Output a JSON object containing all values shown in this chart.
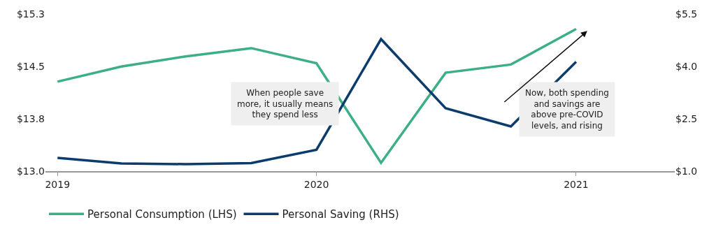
{
  "chart_data": {
    "type": "line",
    "x": [
      "2019-01-01",
      "2019-04-01",
      "2019-07-01",
      "2019-10-01",
      "2020-01-01",
      "2020-04-01",
      "2020-07-01",
      "2020-10-01",
      "2021-01-01"
    ],
    "series": [
      {
        "name": "Personal Consumption (LHS)",
        "color": "#3daf84",
        "values": [
          14.31,
          14.53,
          14.68,
          14.8,
          14.58,
          13.12,
          14.44,
          14.56,
          15.08
        ]
      },
      {
        "name": "Personal Saving (RHS)",
        "color": "#0b3c6b",
        "axis": "y2",
        "values": [
          1.38,
          1.22,
          1.2,
          1.23,
          1.61,
          4.78,
          2.8,
          2.28,
          4.13
        ]
      }
    ],
    "xlim": [
      "2018-12-15",
      "2021-05-20"
    ],
    "xticks": [
      {
        "value": "2019-01-01",
        "label": "2019"
      },
      {
        "value": "2020-01-01",
        "label": "2020"
      },
      {
        "value": "2021-01-01",
        "label": "2021"
      }
    ],
    "ylim": [
      13.0,
      15.3
    ],
    "yticks": [
      {
        "value": 13.0,
        "label": "$13.0"
      },
      {
        "value": 13.7667,
        "label": "$13.8"
      },
      {
        "value": 14.5333,
        "label": "$14.5"
      },
      {
        "value": 15.3,
        "label": "$15.3"
      }
    ],
    "y2lim": [
      1.0,
      5.5
    ],
    "y2ticks": [
      {
        "value": 1.0,
        "label": "$1.0"
      },
      {
        "value": 2.5,
        "label": "$2.5"
      },
      {
        "value": 4.0,
        "label": "$4.0"
      },
      {
        "value": 5.5,
        "label": "$5.5"
      }
    ],
    "annotations": [
      "When people save\nmore, it usually means\nthey spend less",
      "Now, both spending\nand savings are\nabove pre-COVID\nlevels, and rising"
    ],
    "legend": "bottom",
    "marker": "none",
    "line_style": "solid"
  }
}
